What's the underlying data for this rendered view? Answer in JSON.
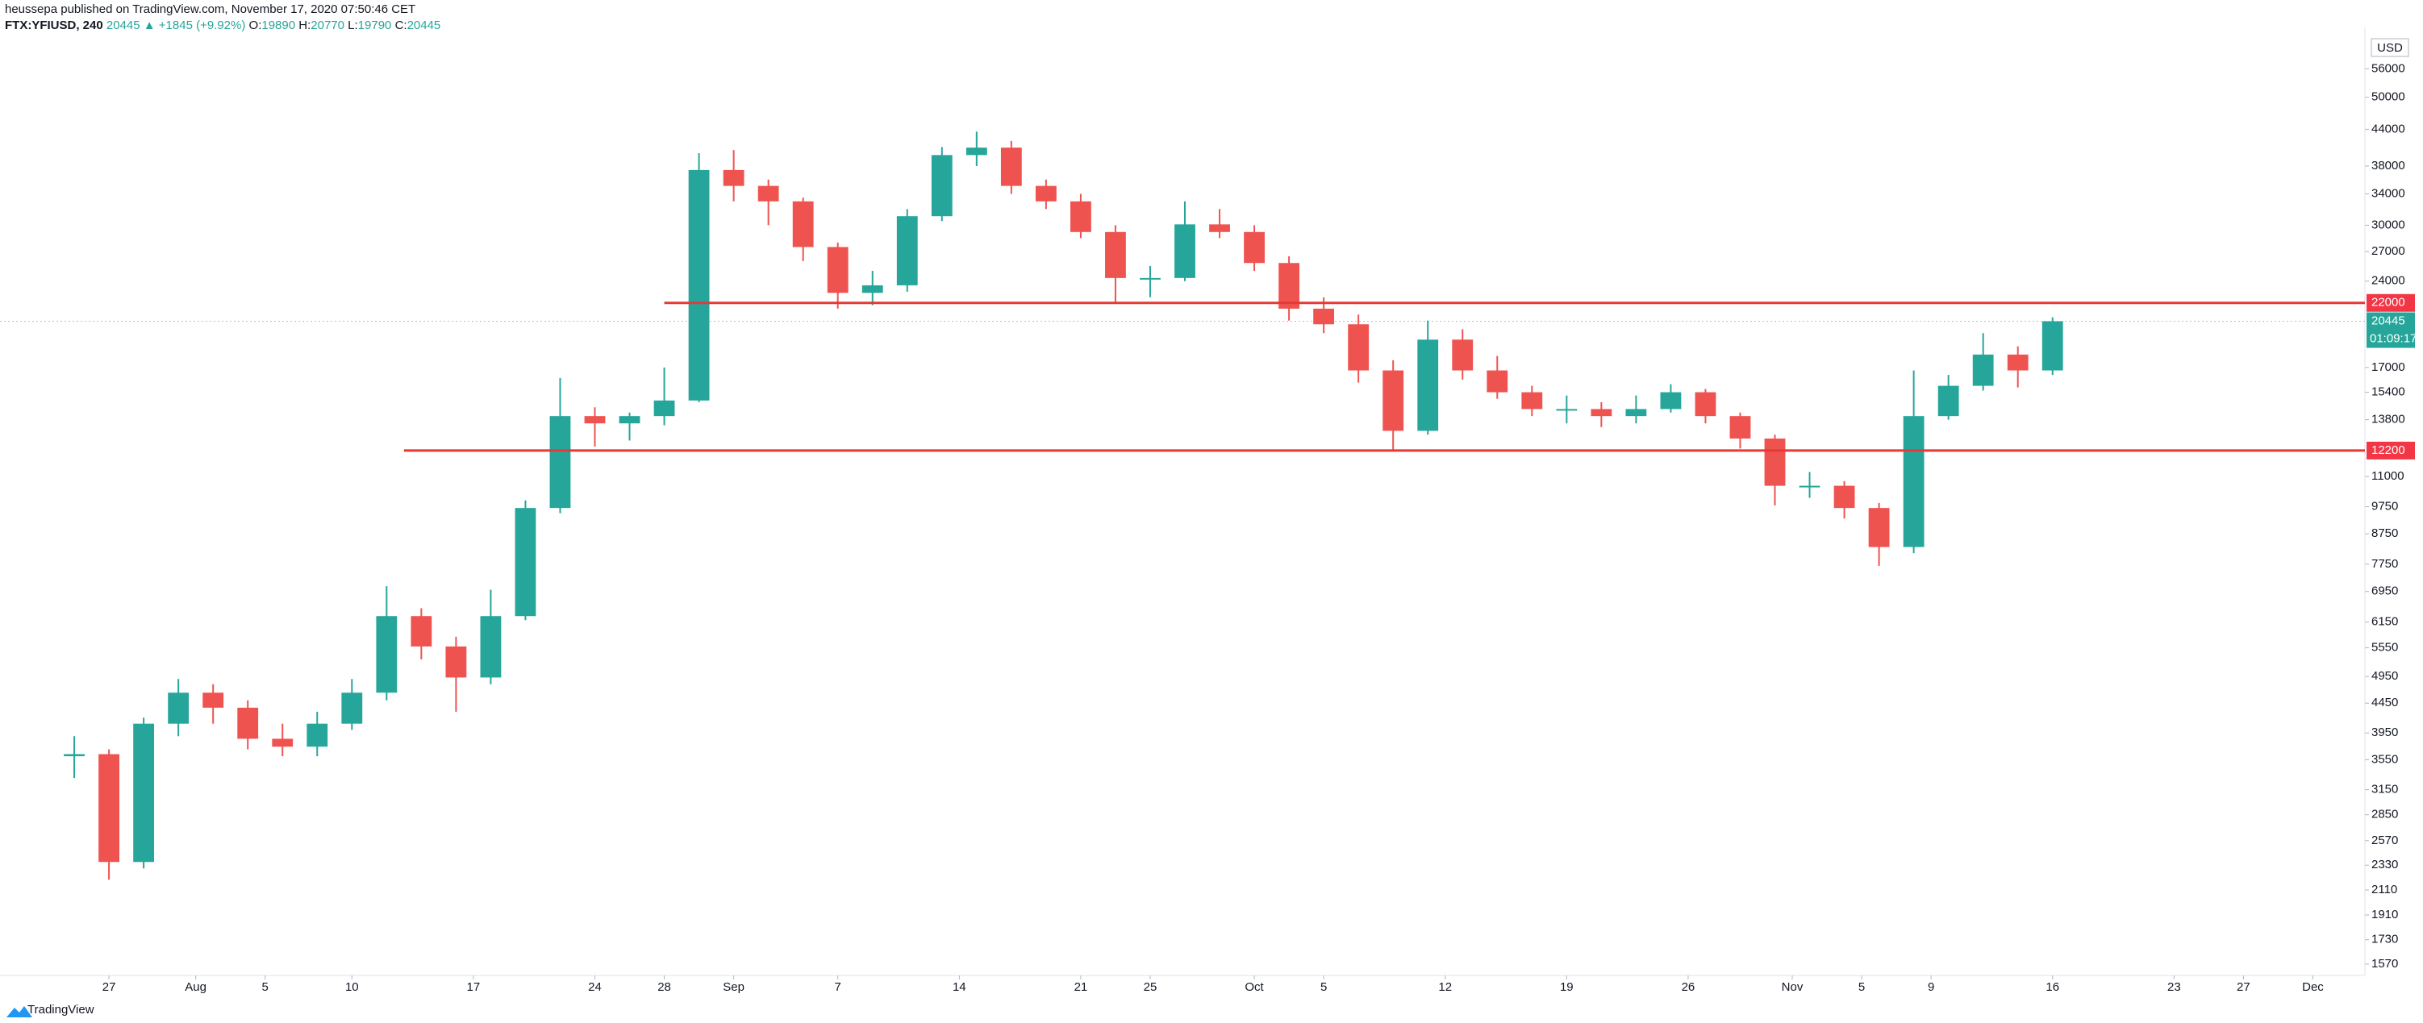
{
  "header": {
    "publisher": "heussepa published on TradingView.com, November 17, 2020 07:50:46 CET",
    "symbol": "FTX:YFIUSD, 240",
    "last": 20445,
    "change": "▲ +1845 (+9.92%)",
    "ohlc": [
      {
        "label": "O:",
        "value": 19890
      },
      {
        "label": "H:",
        "value": 20770
      },
      {
        "label": "L:",
        "value": 19790
      },
      {
        "label": "C:",
        "value": 20445
      }
    ]
  },
  "footer": {
    "brand": "TradingView"
  },
  "chart_data": {
    "type": "candlestick",
    "log_scale": true,
    "currency": "USD",
    "up_color": "#26a69a",
    "down_color": "#ef5350",
    "xlim": [
      "07-21",
      "12-04"
    ],
    "xticks": [
      {
        "value": "07-27",
        "label": "27"
      },
      {
        "value": "08-01",
        "label": "Aug"
      },
      {
        "value": "08-05",
        "label": "5"
      },
      {
        "value": "08-10",
        "label": "10"
      },
      {
        "value": "08-17",
        "label": "17"
      },
      {
        "value": "08-24",
        "label": "24"
      },
      {
        "value": "08-28",
        "label": "28"
      },
      {
        "value": "09-01",
        "label": "Sep"
      },
      {
        "value": "09-07",
        "label": "7"
      },
      {
        "value": "09-14",
        "label": "14"
      },
      {
        "value": "09-21",
        "label": "21"
      },
      {
        "value": "09-25",
        "label": "25"
      },
      {
        "value": "10-01",
        "label": "Oct"
      },
      {
        "value": "10-05",
        "label": "5"
      },
      {
        "value": "10-12",
        "label": "12"
      },
      {
        "value": "10-19",
        "label": "19"
      },
      {
        "value": "10-26",
        "label": "26"
      },
      {
        "value": "11-01",
        "label": "Nov"
      },
      {
        "value": "11-05",
        "label": "5"
      },
      {
        "value": "11-09",
        "label": "9"
      },
      {
        "value": "11-16",
        "label": "16"
      },
      {
        "value": "11-23",
        "label": "23"
      },
      {
        "value": "11-27",
        "label": "27"
      },
      {
        "value": "12-01",
        "label": "Dec"
      }
    ],
    "ylim": [
      1510,
      64000
    ],
    "yticks": [
      56000,
      50000,
      44000,
      38000,
      34000,
      30000,
      27000,
      24000,
      17000,
      15400,
      13800,
      11000,
      9750,
      8750,
      7750,
      6950,
      6150,
      5550,
      4950,
      4450,
      3950,
      3550,
      3150,
      2850,
      2570,
      2330,
      2110,
      1910,
      1730,
      1570
    ],
    "hlines": [
      {
        "value": 22000,
        "start": "08-28",
        "color": "#e53935"
      },
      {
        "value": 12200,
        "start": "08-13",
        "color": "#e53935"
      }
    ],
    "price_tags": [
      {
        "value": 22000,
        "color": "#f23645"
      },
      {
        "value": 20445,
        "color": "#26a69a",
        "countdown": "01:09:17"
      },
      {
        "value": 12200,
        "color": "#f23645"
      }
    ],
    "candles": [
      {
        "x": "07-25",
        "open": 3600,
        "high": 3900,
        "low": 3300,
        "close": 3630
      },
      {
        "x": "07-27",
        "open": 3630,
        "high": 3700,
        "low": 2200,
        "close": 2360
      },
      {
        "x": "07-29",
        "open": 2360,
        "high": 4200,
        "low": 2300,
        "close": 4100
      },
      {
        "x": "07-31",
        "open": 4100,
        "high": 4900,
        "low": 3900,
        "close": 4640
      },
      {
        "x": "08-02",
        "open": 4640,
        "high": 4800,
        "low": 4100,
        "close": 4370
      },
      {
        "x": "08-04",
        "open": 4370,
        "high": 4500,
        "low": 3700,
        "close": 3860
      },
      {
        "x": "08-06",
        "open": 3860,
        "high": 4100,
        "low": 3600,
        "close": 3740
      },
      {
        "x": "08-08",
        "open": 3740,
        "high": 4300,
        "low": 3600,
        "close": 4100
      },
      {
        "x": "08-10",
        "open": 4100,
        "high": 4900,
        "low": 4000,
        "close": 4640
      },
      {
        "x": "08-12",
        "open": 4640,
        "high": 7100,
        "low": 4500,
        "close": 6300
      },
      {
        "x": "08-14",
        "open": 6300,
        "high": 6500,
        "low": 5300,
        "close": 5580
      },
      {
        "x": "08-16",
        "open": 5580,
        "high": 5800,
        "low": 4300,
        "close": 4930
      },
      {
        "x": "08-18",
        "open": 4930,
        "high": 7000,
        "low": 4800,
        "close": 6300
      },
      {
        "x": "08-20",
        "open": 6300,
        "high": 10000,
        "low": 6200,
        "close": 9700
      },
      {
        "x": "08-22",
        "open": 9700,
        "high": 16300,
        "low": 9500,
        "close": 14000
      },
      {
        "x": "08-24",
        "open": 14000,
        "high": 14500,
        "low": 12400,
        "close": 13600
      },
      {
        "x": "08-26",
        "open": 13600,
        "high": 14200,
        "low": 12700,
        "close": 14000
      },
      {
        "x": "08-28",
        "open": 14000,
        "high": 17000,
        "low": 13500,
        "close": 14900
      },
      {
        "x": "08-30",
        "open": 14900,
        "high": 40000,
        "low": 14800,
        "close": 37400
      },
      {
        "x": "09-01",
        "open": 37400,
        "high": 40500,
        "low": 33000,
        "close": 35100
      },
      {
        "x": "09-03",
        "open": 35100,
        "high": 36000,
        "low": 30000,
        "close": 33000
      },
      {
        "x": "09-05",
        "open": 33000,
        "high": 33500,
        "low": 26000,
        "close": 27500
      },
      {
        "x": "09-07",
        "open": 27500,
        "high": 28000,
        "low": 21500,
        "close": 22900
      },
      {
        "x": "09-09",
        "open": 22900,
        "high": 25000,
        "low": 21800,
        "close": 23600
      },
      {
        "x": "09-11",
        "open": 23600,
        "high": 32000,
        "low": 23000,
        "close": 31100
      },
      {
        "x": "09-13",
        "open": 31100,
        "high": 41000,
        "low": 30500,
        "close": 39700
      },
      {
        "x": "09-15",
        "open": 39700,
        "high": 43600,
        "low": 38000,
        "close": 40900
      },
      {
        "x": "09-17",
        "open": 40900,
        "high": 42000,
        "low": 34000,
        "close": 35100
      },
      {
        "x": "09-19",
        "open": 35100,
        "high": 36000,
        "low": 32000,
        "close": 33000
      },
      {
        "x": "09-21",
        "open": 33000,
        "high": 34000,
        "low": 28500,
        "close": 29200
      },
      {
        "x": "09-23",
        "open": 29200,
        "high": 30000,
        "low": 22000,
        "close": 24300
      },
      {
        "x": "09-25",
        "open": 24300,
        "high": 25500,
        "low": 22500,
        "close": 24300
      },
      {
        "x": "09-27",
        "open": 24300,
        "high": 33000,
        "low": 24000,
        "close": 30100
      },
      {
        "x": "09-29",
        "open": 30100,
        "high": 32000,
        "low": 28500,
        "close": 29200
      },
      {
        "x": "10-01",
        "open": 29200,
        "high": 30000,
        "low": 25000,
        "close": 25800
      },
      {
        "x": "10-03",
        "open": 25800,
        "high": 26500,
        "low": 20500,
        "close": 21500
      },
      {
        "x": "10-05",
        "open": 21500,
        "high": 22500,
        "low": 19500,
        "close": 20200
      },
      {
        "x": "10-07",
        "open": 20200,
        "high": 21000,
        "low": 16000,
        "close": 16800
      },
      {
        "x": "10-09",
        "open": 16800,
        "high": 17500,
        "low": 12200,
        "close": 13200
      },
      {
        "x": "10-11",
        "open": 13200,
        "high": 20500,
        "low": 13000,
        "close": 19000
      },
      {
        "x": "10-13",
        "open": 19000,
        "high": 19800,
        "low": 16200,
        "close": 16800
      },
      {
        "x": "10-15",
        "open": 16800,
        "high": 17800,
        "low": 15000,
        "close": 15400
      },
      {
        "x": "10-17",
        "open": 15400,
        "high": 15800,
        "low": 14000,
        "close": 14400
      },
      {
        "x": "10-19",
        "open": 14400,
        "high": 15200,
        "low": 13600,
        "close": 14400
      },
      {
        "x": "10-21",
        "open": 14400,
        "high": 14800,
        "low": 13400,
        "close": 14000
      },
      {
        "x": "10-23",
        "open": 14000,
        "high": 15200,
        "low": 13600,
        "close": 14400
      },
      {
        "x": "10-25",
        "open": 14400,
        "high": 15900,
        "low": 14200,
        "close": 15400
      },
      {
        "x": "10-27",
        "open": 15400,
        "high": 15600,
        "low": 13600,
        "close": 14000
      },
      {
        "x": "10-29",
        "open": 14000,
        "high": 14200,
        "low": 12300,
        "close": 12800
      },
      {
        "x": "10-31",
        "open": 12800,
        "high": 13000,
        "low": 9800,
        "close": 10600
      },
      {
        "x": "11-02",
        "open": 10600,
        "high": 11200,
        "low": 10100,
        "close": 10600
      },
      {
        "x": "11-04",
        "open": 10600,
        "high": 10800,
        "low": 9300,
        "close": 9700
      },
      {
        "x": "11-06",
        "open": 9700,
        "high": 9900,
        "low": 7700,
        "close": 8300
      },
      {
        "x": "11-08",
        "open": 8300,
        "high": 16800,
        "low": 8100,
        "close": 14000
      },
      {
        "x": "11-10",
        "open": 14000,
        "high": 16500,
        "low": 13800,
        "close": 15800
      },
      {
        "x": "11-12",
        "open": 15800,
        "high": 19500,
        "low": 15500,
        "close": 17900
      },
      {
        "x": "11-14",
        "open": 17900,
        "high": 18500,
        "low": 15700,
        "close": 16800
      },
      {
        "x": "11-16",
        "open": 16800,
        "high": 20770,
        "low": 16500,
        "close": 20445
      }
    ]
  }
}
